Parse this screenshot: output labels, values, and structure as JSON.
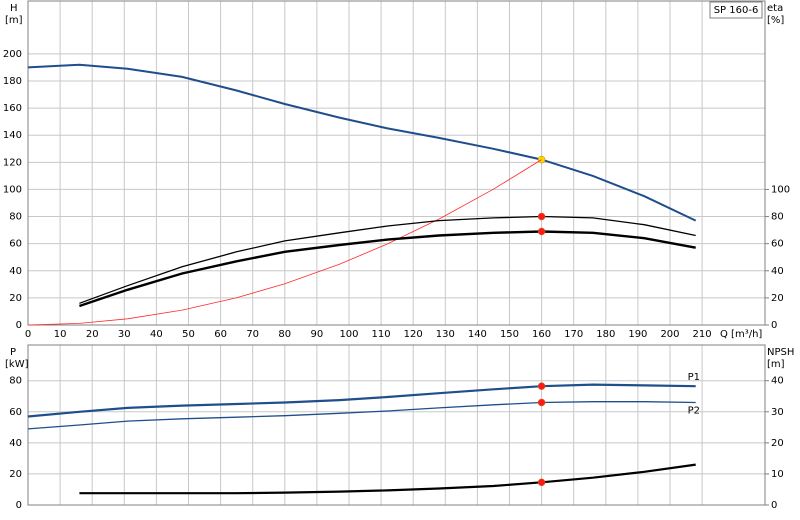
{
  "chart_data": [
    {
      "type": "line",
      "title": "SP 160-6",
      "ylabel": "H",
      "ylabel_unit": "[m]",
      "y2label": "eta",
      "y2label_unit": "[%]",
      "xlabel": "Q [m³/h]",
      "x": [
        0,
        16,
        31,
        48,
        65,
        80,
        97,
        112,
        128,
        145,
        160,
        176,
        192,
        208
      ],
      "xlim": [
        0,
        229.6
      ],
      "xticks": [
        0,
        10,
        20,
        30,
        40,
        50,
        60,
        70,
        80,
        90,
        100,
        110,
        120,
        130,
        140,
        150,
        160,
        170,
        180,
        190,
        200,
        210
      ],
      "xtick_labels": true,
      "ylim": [
        0,
        239
      ],
      "yticks": [
        0,
        20,
        40,
        60,
        80,
        100,
        120,
        140,
        160,
        180,
        200
      ],
      "y2lim": [
        0,
        239
      ],
      "y2ticks": [
        0,
        20,
        40,
        60,
        80,
        100
      ],
      "grid": true,
      "duty_x": 160,
      "series": [
        {
          "color": "#1f4e8c",
          "line_width": 2,
          "marker_color": "#ffd800",
          "values": [
            190,
            192,
            189,
            183,
            173,
            163,
            153,
            145,
            138,
            130,
            122,
            110,
            95,
            77
          ]
        },
        {
          "color": "#ff2a2a",
          "line_width": 0.8,
          "values": [
            0,
            1.2,
            4.6,
            11,
            20.1,
            30.5,
            44.8,
            59.8,
            78.1,
            100.2,
            122,
            null,
            null,
            null
          ]
        },
        {
          "color": "#000000",
          "line_width": 1.3,
          "axis": "y2",
          "marker_color": "#ff1a1a",
          "values": [
            null,
            16,
            29,
            43,
            54,
            62,
            68,
            73,
            77,
            79,
            80,
            79,
            74,
            66
          ]
        },
        {
          "color": "#000000",
          "line_width": 2.4,
          "axis": "y2",
          "marker_color": "#ff1a1a",
          "values": [
            null,
            14,
            26,
            38,
            47,
            54,
            59,
            63,
            66,
            68,
            69,
            68,
            64,
            57
          ]
        }
      ]
    },
    {
      "type": "line",
      "ylabel": "P",
      "ylabel_unit": "[kW]",
      "y2label": "NPSH",
      "y2label_unit": "[m]",
      "x": [
        0,
        16,
        31,
        48,
        65,
        80,
        97,
        112,
        128,
        145,
        160,
        176,
        192,
        208
      ],
      "xlim": [
        0,
        229.6
      ],
      "xticks": [
        0,
        10,
        20,
        30,
        40,
        50,
        60,
        70,
        80,
        90,
        100,
        110,
        120,
        130,
        140,
        150,
        160,
        170,
        180,
        190,
        200,
        210
      ],
      "xtick_labels": false,
      "ylim": [
        0,
        103
      ],
      "yticks": [
        0,
        20,
        40,
        60,
        80
      ],
      "y2lim": [
        0,
        51.5
      ],
      "y2ticks": [
        0,
        10,
        20,
        30,
        40
      ],
      "grid": true,
      "duty_x": 160,
      "series": [
        {
          "name": "P1",
          "label_side": "above",
          "color": "#1f4e8c",
          "line_width": 2.2,
          "marker_color": "#ff1a1a",
          "values": [
            57,
            60,
            62.5,
            64,
            65,
            66,
            67.5,
            69.5,
            72,
            74.5,
            76.5,
            77.5,
            77,
            76.5
          ]
        },
        {
          "name": "P2",
          "label_side": "below",
          "color": "#1f4e8c",
          "line_width": 1.3,
          "marker_color": "#ff1a1a",
          "values": [
            49,
            51.5,
            54,
            55.5,
            56.5,
            57.5,
            59,
            60.5,
            62.5,
            64.5,
            66,
            66.5,
            66.5,
            66
          ]
        },
        {
          "color": "#000000",
          "line_width": 2.2,
          "axis": "y2",
          "marker_color": "#ff1a1a",
          "values": [
            null,
            3.8,
            3.8,
            3.8,
            3.8,
            4.0,
            4.3,
            4.7,
            5.3,
            6.1,
            7.3,
            8.8,
            10.7,
            13
          ]
        }
      ]
    }
  ]
}
